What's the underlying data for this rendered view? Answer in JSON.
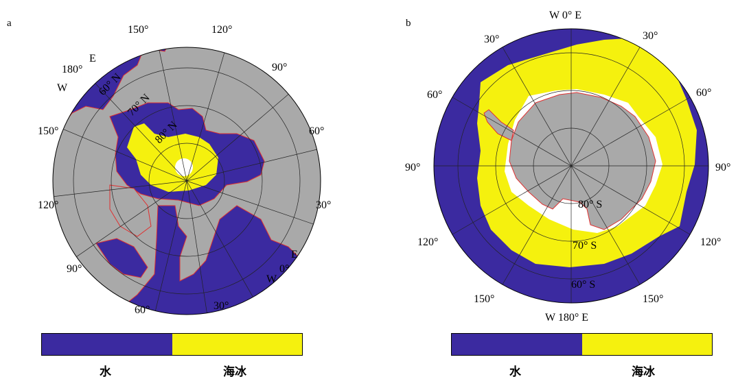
{
  "panels": {
    "a": {
      "letter": "a",
      "lon_labels": [
        "150°",
        "120°",
        "90°",
        "60°",
        "30°",
        "0°",
        "30°",
        "60°",
        "90°",
        "120°",
        "150°",
        "180°"
      ],
      "lat_labels": [
        "60° N",
        "70° N",
        "80° N"
      ],
      "hemi_labels": [
        "E",
        "W",
        "E",
        "W"
      ]
    },
    "b": {
      "letter": "b",
      "top_label": "W 0° E",
      "bottom_label": "W 180° E",
      "lon_labels": [
        "30°",
        "30°",
        "60°",
        "60°",
        "90°",
        "90°",
        "120°",
        "120°",
        "150°",
        "150°"
      ],
      "lat_labels": [
        "80° S",
        "70° S",
        "60° S"
      ]
    }
  },
  "legend": {
    "water_label": "水",
    "ice_label": "海冰",
    "colors": {
      "water": "#3b2aa0",
      "sea_ice": "#f5f10e",
      "land": "#a9a9a9",
      "coast": "#e03030"
    }
  }
}
